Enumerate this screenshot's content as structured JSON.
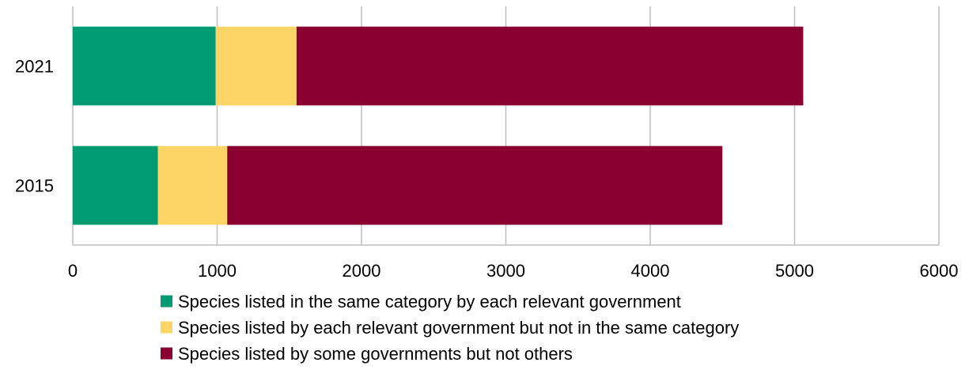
{
  "chart_data": {
    "type": "bar",
    "orientation": "horizontal",
    "stacked": true,
    "categories": [
      "2021",
      "2015"
    ],
    "series": [
      {
        "name": "Species listed in the same category by each relevant government",
        "values": [
          990,
          590
        ],
        "color": "#009b72"
      },
      {
        "name": "Species listed by each relevant government but not in the same category",
        "values": [
          560,
          480
        ],
        "color": "#fdd567"
      },
      {
        "name": "Species listed by some governments but not others",
        "values": [
          3510,
          3430
        ],
        "color": "#8a0030"
      }
    ],
    "xlim": [
      0,
      6000
    ],
    "xticks": [
      "0",
      "1000",
      "2000",
      "3000",
      "4000",
      "5000",
      "6000"
    ],
    "title": "",
    "xlabel": "",
    "ylabel": "",
    "grid": "vertical",
    "legend_position": "bottom"
  }
}
